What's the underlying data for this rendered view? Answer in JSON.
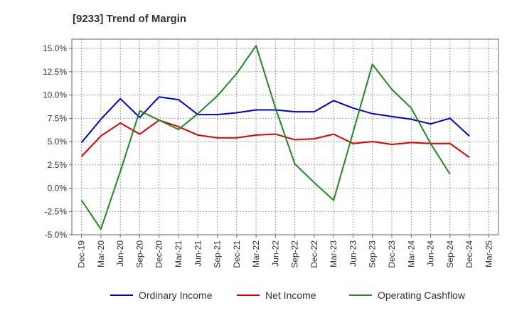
{
  "chart_data": {
    "type": "line",
    "title": "[9233]  Trend of Margin",
    "xlabel": "",
    "ylabel": "",
    "ylim": [
      -5.0,
      16.0
    ],
    "y_ticks": [
      "15.0%",
      "12.5%",
      "10.0%",
      "7.5%",
      "5.0%",
      "2.5%",
      "0.0%",
      "-2.5%",
      "-5.0%"
    ],
    "y_tick_values": [
      15.0,
      12.5,
      10.0,
      7.5,
      5.0,
      2.5,
      0.0,
      -2.5,
      -5.0
    ],
    "categories": [
      "Dec-19",
      "Mar-20",
      "Jun-20",
      "Sep-20",
      "Dec-20",
      "Mar-21",
      "Jun-21",
      "Sep-21",
      "Dec-21",
      "Mar-22",
      "Jun-22",
      "Sep-22",
      "Dec-22",
      "Mar-23",
      "Jun-23",
      "Sep-23",
      "Dec-23",
      "Mar-24",
      "Jun-24",
      "Sep-24",
      "Dec-24",
      "Mar-25"
    ],
    "grid": true,
    "legend_position": "bottom",
    "series": [
      {
        "name": "Ordinary Income",
        "color": "#0000cc",
        "values": [
          4.9,
          7.4,
          9.6,
          7.6,
          9.8,
          9.5,
          7.9,
          7.9,
          8.1,
          8.4,
          8.4,
          8.2,
          8.2,
          9.4,
          8.6,
          8.0,
          7.7,
          7.4,
          6.9,
          7.5,
          5.6,
          null
        ]
      },
      {
        "name": "Net Income",
        "color": "#dd0000",
        "values": [
          3.4,
          5.6,
          7.0,
          5.8,
          7.3,
          6.6,
          5.7,
          5.4,
          5.4,
          5.7,
          5.8,
          5.2,
          5.3,
          5.8,
          4.8,
          5.0,
          4.7,
          4.9,
          4.8,
          4.8,
          3.3,
          null
        ]
      },
      {
        "name": "Operating Cashflow",
        "color": "#228822",
        "values": [
          -1.3,
          -4.4,
          1.8,
          8.3,
          7.3,
          6.3,
          8.0,
          9.9,
          12.3,
          15.3,
          8.6,
          2.6,
          0.6,
          -1.3,
          6.0,
          13.3,
          10.6,
          8.6,
          4.8,
          1.5,
          null,
          null
        ]
      }
    ]
  }
}
